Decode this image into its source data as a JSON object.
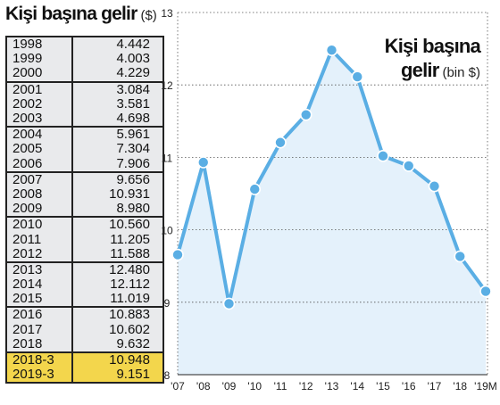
{
  "left_title": {
    "main": "Kişi başına gelir",
    "unit": "($)"
  },
  "table": [
    {
      "year": "1998",
      "value": "4.442",
      "group_start": true,
      "highlight": false
    },
    {
      "year": "1999",
      "value": "4.003",
      "group_start": false,
      "highlight": false
    },
    {
      "year": "2000",
      "value": "4.229",
      "group_start": false,
      "highlight": false
    },
    {
      "year": "2001",
      "value": "3.084",
      "group_start": true,
      "highlight": false
    },
    {
      "year": "2002",
      "value": "3.581",
      "group_start": false,
      "highlight": false
    },
    {
      "year": "2003",
      "value": "4.698",
      "group_start": false,
      "highlight": false
    },
    {
      "year": "2004",
      "value": "5.961",
      "group_start": true,
      "highlight": false
    },
    {
      "year": "2005",
      "value": "7.304",
      "group_start": false,
      "highlight": false
    },
    {
      "year": "2006",
      "value": "7.906",
      "group_start": false,
      "highlight": false
    },
    {
      "year": "2007",
      "value": "9.656",
      "group_start": true,
      "highlight": false
    },
    {
      "year": "2008",
      "value": "10.931",
      "group_start": false,
      "highlight": false
    },
    {
      "year": "2009",
      "value": "8.980",
      "group_start": false,
      "highlight": false
    },
    {
      "year": "2010",
      "value": "10.560",
      "group_start": true,
      "highlight": false
    },
    {
      "year": "2011",
      "value": "11.205",
      "group_start": false,
      "highlight": false
    },
    {
      "year": "2012",
      "value": "11.588",
      "group_start": false,
      "highlight": false
    },
    {
      "year": "2013",
      "value": "12.480",
      "group_start": true,
      "highlight": false
    },
    {
      "year": "2014",
      "value": "12.112",
      "group_start": false,
      "highlight": false
    },
    {
      "year": "2015",
      "value": "11.019",
      "group_start": false,
      "highlight": false
    },
    {
      "year": "2016",
      "value": "10.883",
      "group_start": true,
      "highlight": false
    },
    {
      "year": "2017",
      "value": "10.602",
      "group_start": false,
      "highlight": false
    },
    {
      "year": "2018",
      "value": "9.632",
      "group_start": false,
      "highlight": false
    },
    {
      "year": "2018-3",
      "value": "10.948",
      "group_start": true,
      "highlight": true
    },
    {
      "year": "2019-3",
      "value": "9.151",
      "group_start": false,
      "highlight": true
    }
  ],
  "chart_data": {
    "type": "area",
    "title": "Kişi başına",
    "title_line2": "gelir",
    "unit": "(bin $)",
    "x": [
      "'07",
      "'08",
      "'09",
      "'10",
      "'11",
      "'12",
      "'13",
      "'14",
      "'15",
      "'16",
      "'17",
      "'18",
      "'19M"
    ],
    "values": [
      9.656,
      10.931,
      8.98,
      10.56,
      11.205,
      11.588,
      12.48,
      12.112,
      11.019,
      10.883,
      10.602,
      9.632,
      9.151
    ],
    "yticks": [
      8,
      9,
      10,
      11,
      12,
      13
    ],
    "ylim": [
      8,
      13
    ],
    "grid": true,
    "colors": {
      "line": "#5aaee4",
      "fill": "#e4f1fb",
      "marker_edge": "#ffffff",
      "grid": "#555555"
    }
  }
}
